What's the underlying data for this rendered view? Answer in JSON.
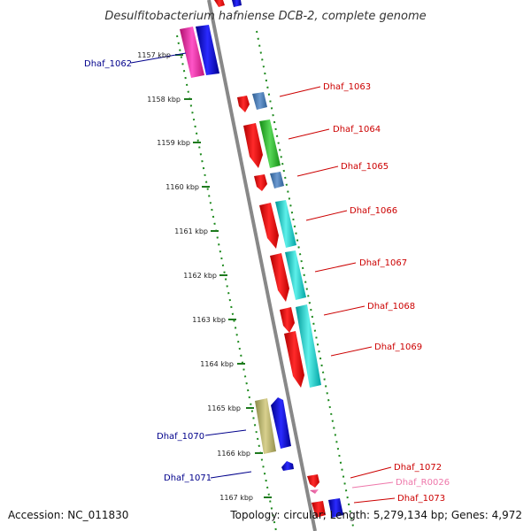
{
  "title": "Desulfitobacterium hafniense DCB-2, complete genome",
  "footer": {
    "accession": "Accession: NC_011830",
    "summary": "Topology: circular; Length: 5,279,134 bp; Genes: 4,972"
  },
  "colors": {
    "backbone": "#888888",
    "kbp_tick": "#1e7a1e",
    "gene_dot": "#1e8a1e",
    "label_forward": "#00008b",
    "label_reverse": "#cc0000",
    "label_rna": "#ee77aa"
  },
  "kbp_ticks": [
    "1157 kbp",
    "1158 kbp",
    "1159 kbp",
    "1160 kbp",
    "1161 kbp",
    "1162 kbp",
    "1163 kbp",
    "1164 kbp",
    "1165 kbp",
    "1166 kbp",
    "1167 kbp"
  ],
  "gene_labels": [
    {
      "text": "Dhaf_1062",
      "kind": "forward"
    },
    {
      "text": "Dhaf_1063",
      "kind": "reverse"
    },
    {
      "text": "Dhaf_1064",
      "kind": "reverse"
    },
    {
      "text": "Dhaf_1065",
      "kind": "reverse"
    },
    {
      "text": "Dhaf_1066",
      "kind": "reverse"
    },
    {
      "text": "Dhaf_1067",
      "kind": "reverse"
    },
    {
      "text": "Dhaf_1068",
      "kind": "reverse"
    },
    {
      "text": "Dhaf_1069",
      "kind": "reverse"
    },
    {
      "text": "Dhaf_1070",
      "kind": "forward"
    },
    {
      "text": "Dhaf_1071",
      "kind": "forward"
    },
    {
      "text": "Dhaf_1072",
      "kind": "reverse"
    },
    {
      "text": "Dhaf_R0026",
      "kind": "rna"
    },
    {
      "text": "Dhaf_1073",
      "kind": "reverse"
    }
  ]
}
